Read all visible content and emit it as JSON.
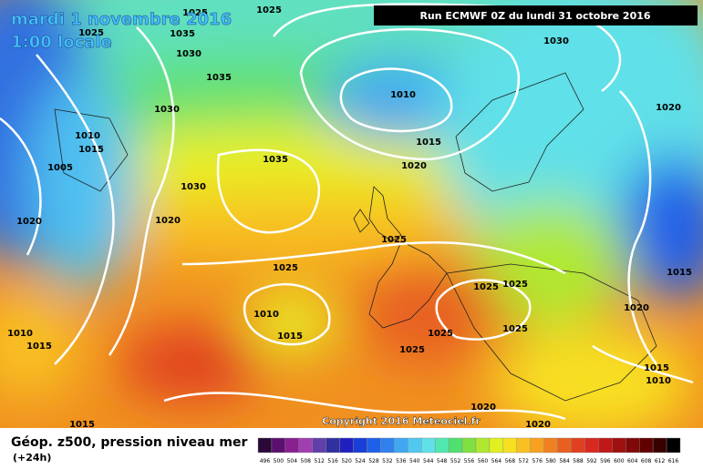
{
  "header": {
    "title": "mardi 1 novembre 2016",
    "time": "1:00 locale",
    "run": "Run ECMWF 0Z du lundi 31 octobre 2016"
  },
  "map": {
    "isobar_labels": [
      "1025",
      "1025",
      "1025",
      "1035",
      "1030",
      "1030",
      "1035",
      "1030",
      "1010",
      "1015",
      "1020",
      "1035",
      "1030",
      "1020",
      "1020",
      "1005",
      "1010",
      "1015",
      "1025",
      "1025",
      "1025",
      "1025",
      "1010",
      "1015",
      "1025",
      "1025",
      "1025",
      "1020",
      "1015",
      "1020",
      "1015",
      "1010",
      "1010",
      "1015",
      "1020",
      "1020",
      "1015"
    ]
  },
  "footer": {
    "copyright": "Copyright 2016 Meteociel.fr",
    "title": "Géop. z500, pression niveau mer",
    "step": "(+24h)"
  },
  "color_scale": {
    "ticks": [
      496,
      500,
      504,
      508,
      512,
      516,
      520,
      524,
      528,
      532,
      536,
      540,
      544,
      548,
      552,
      556,
      560,
      564,
      568,
      572,
      576,
      580,
      584,
      588,
      592,
      596,
      600,
      604,
      608,
      612,
      616
    ],
    "colors": [
      "#2a0838",
      "#5a1070",
      "#8a2090",
      "#a040b0",
      "#6040a8",
      "#3030a0",
      "#2020c0",
      "#1840d8",
      "#2060e8",
      "#3080f0",
      "#40a8f0",
      "#50c8f0",
      "#60e0e8",
      "#50e8b0",
      "#50e070",
      "#80e040",
      "#b0e830",
      "#e0f020",
      "#f8e020",
      "#f8c020",
      "#f8a020",
      "#f08020",
      "#e86020",
      "#e04020",
      "#d82820",
      "#c01818",
      "#a01010",
      "#800808",
      "#600000",
      "#380000",
      "#000000"
    ]
  }
}
